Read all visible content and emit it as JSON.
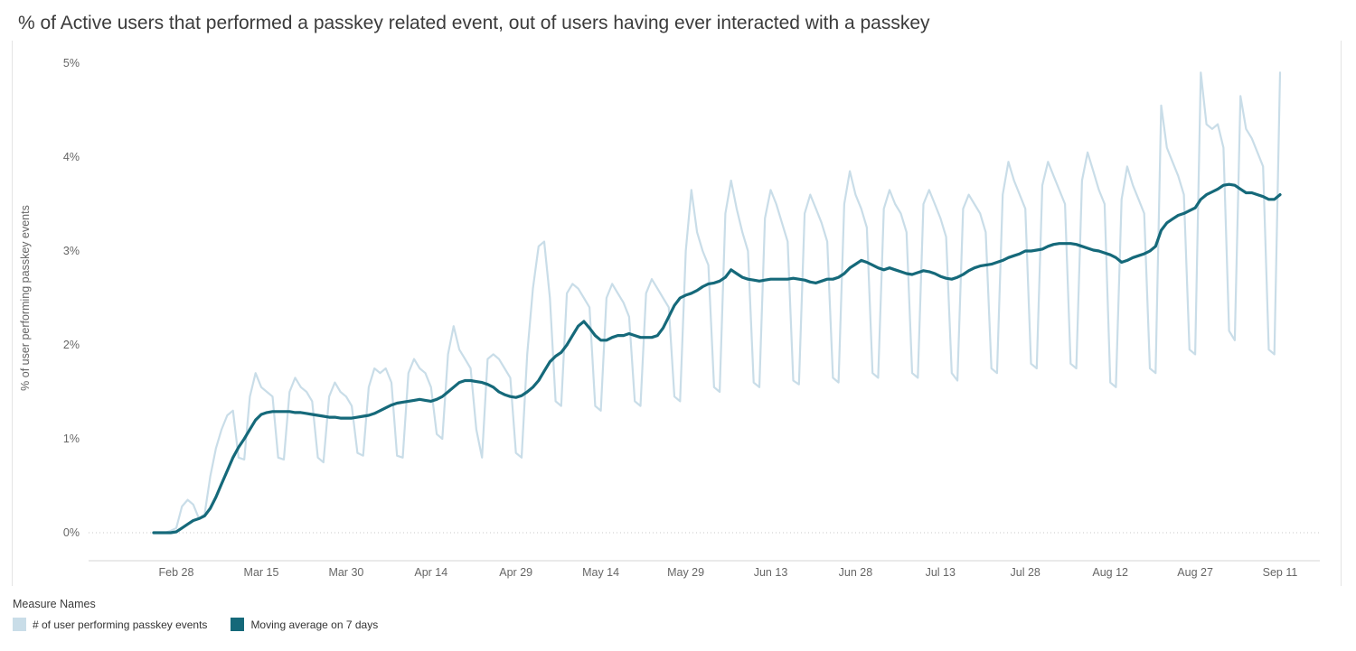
{
  "title": "% of Active users that performed a passkey related event, out of users having ever interacted with a passkey",
  "legend": {
    "title": "Measure Names",
    "items": [
      {
        "label": "# of user performing passkey events",
        "color": "#c9dde8"
      },
      {
        "label": "Moving average on 7 days",
        "color": "#15697a"
      }
    ]
  },
  "colors": {
    "grid_dotted": "#c9c9c9",
    "axis_line": "#d6d6d6",
    "panel_border": "#e4e4e4",
    "axis_text": "#666666",
    "title_text": "#3b3b3b"
  },
  "chart_data": {
    "type": "line",
    "title": "% of Active users that performed a passkey related event, out of users having ever interacted with a passkey",
    "xlabel": "",
    "ylabel": "% of user performing passkey events",
    "ylim": [
      0,
      5
    ],
    "y_tick_values": [
      0,
      1,
      2,
      3,
      4,
      5
    ],
    "y_tick_labels": [
      "0%",
      "1%",
      "2%",
      "3%",
      "4%",
      "5%"
    ],
    "x_frequency": "daily",
    "x_start": "Feb 24",
    "x_end": "Sep 11",
    "x_tick_indices": [
      4,
      19,
      34,
      49,
      64,
      79,
      94,
      109,
      124,
      139,
      154,
      169,
      184,
      199
    ],
    "x_tick_labels": [
      "Feb 28",
      "Mar 15",
      "Mar 30",
      "Apr 14",
      "Apr 29",
      "May 14",
      "May 29",
      "Jun 13",
      "Jun 28",
      "Jul 13",
      "Jul 28",
      "Aug 12",
      "Aug 27",
      "Sep 11"
    ],
    "grid": "no gridlines except dotted line at 0%",
    "legend_position": "bottom-left",
    "series": [
      {
        "name": "# of user performing passkey events",
        "color": "#c9dde8",
        "values": [
          0,
          0,
          0,
          0.02,
          0.05,
          0.28,
          0.35,
          0.3,
          0.15,
          0.2,
          0.6,
          0.9,
          1.1,
          1.25,
          1.3,
          0.8,
          0.78,
          1.45,
          1.7,
          1.55,
          1.5,
          1.45,
          0.8,
          0.78,
          1.5,
          1.65,
          1.55,
          1.5,
          1.4,
          0.8,
          0.75,
          1.45,
          1.6,
          1.5,
          1.45,
          1.35,
          0.85,
          0.82,
          1.55,
          1.75,
          1.7,
          1.75,
          1.6,
          0.82,
          0.8,
          1.7,
          1.85,
          1.75,
          1.7,
          1.55,
          1.05,
          1,
          1.9,
          2.2,
          1.95,
          1.85,
          1.75,
          1.1,
          0.8,
          1.85,
          1.9,
          1.85,
          1.75,
          1.65,
          0.85,
          0.8,
          1.9,
          2.6,
          3.05,
          3.1,
          2.5,
          1.4,
          1.35,
          2.55,
          2.65,
          2.6,
          2.5,
          2.4,
          1.35,
          1.3,
          2.5,
          2.65,
          2.55,
          2.45,
          2.3,
          1.4,
          1.35,
          2.55,
          2.7,
          2.6,
          2.5,
          2.4,
          1.45,
          1.4,
          3,
          3.65,
          3.2,
          3,
          2.85,
          1.55,
          1.5,
          3.4,
          3.75,
          3.45,
          3.2,
          3,
          1.6,
          1.55,
          3.35,
          3.65,
          3.5,
          3.3,
          3.1,
          1.62,
          1.58,
          3.4,
          3.6,
          3.45,
          3.3,
          3.1,
          1.65,
          1.6,
          3.5,
          3.85,
          3.6,
          3.45,
          3.25,
          1.7,
          1.65,
          3.45,
          3.65,
          3.5,
          3.4,
          3.2,
          1.7,
          1.65,
          3.5,
          3.65,
          3.5,
          3.35,
          3.15,
          1.7,
          1.62,
          3.45,
          3.6,
          3.5,
          3.4,
          3.2,
          1.75,
          1.7,
          3.6,
          3.95,
          3.75,
          3.6,
          3.45,
          1.8,
          1.75,
          3.7,
          3.95,
          3.8,
          3.65,
          3.5,
          1.8,
          1.75,
          3.75,
          4.05,
          3.85,
          3.65,
          3.5,
          1.6,
          1.55,
          3.55,
          3.9,
          3.7,
          3.55,
          3.4,
          1.75,
          1.7,
          4.55,
          4.1,
          3.95,
          3.8,
          3.6,
          1.95,
          1.9,
          4.9,
          4.35,
          4.3,
          4.35,
          4.1,
          2.15,
          2.05,
          4.65,
          4.3,
          4.2,
          4.05,
          3.9,
          1.95,
          1.9,
          4.9
        ]
      },
      {
        "name": "Moving average on 7 days",
        "color": "#15697a",
        "values": [
          0,
          0,
          0,
          0,
          0.01,
          0.05,
          0.09,
          0.13,
          0.15,
          0.18,
          0.26,
          0.38,
          0.52,
          0.66,
          0.8,
          0.91,
          1,
          1.1,
          1.2,
          1.26,
          1.28,
          1.29,
          1.29,
          1.29,
          1.29,
          1.28,
          1.28,
          1.27,
          1.26,
          1.25,
          1.24,
          1.23,
          1.23,
          1.22,
          1.22,
          1.22,
          1.23,
          1.24,
          1.25,
          1.27,
          1.3,
          1.33,
          1.36,
          1.38,
          1.39,
          1.4,
          1.41,
          1.42,
          1.41,
          1.4,
          1.42,
          1.45,
          1.5,
          1.55,
          1.6,
          1.62,
          1.62,
          1.61,
          1.6,
          1.58,
          1.55,
          1.5,
          1.47,
          1.45,
          1.44,
          1.46,
          1.5,
          1.55,
          1.62,
          1.72,
          1.82,
          1.88,
          1.92,
          2,
          2.1,
          2.2,
          2.25,
          2.18,
          2.1,
          2.05,
          2.05,
          2.08,
          2.1,
          2.1,
          2.12,
          2.1,
          2.08,
          2.08,
          2.08,
          2.1,
          2.18,
          2.3,
          2.42,
          2.5,
          2.53,
          2.55,
          2.58,
          2.62,
          2.65,
          2.66,
          2.68,
          2.72,
          2.8,
          2.76,
          2.72,
          2.7,
          2.69,
          2.68,
          2.69,
          2.7,
          2.7,
          2.7,
          2.7,
          2.71,
          2.7,
          2.69,
          2.67,
          2.66,
          2.68,
          2.7,
          2.7,
          2.72,
          2.76,
          2.82,
          2.86,
          2.9,
          2.88,
          2.85,
          2.82,
          2.8,
          2.82,
          2.8,
          2.78,
          2.76,
          2.75,
          2.77,
          2.79,
          2.78,
          2.76,
          2.73,
          2.71,
          2.7,
          2.72,
          2.75,
          2.79,
          2.82,
          2.84,
          2.85,
          2.86,
          2.88,
          2.9,
          2.93,
          2.95,
          2.97,
          3,
          3,
          3.01,
          3.02,
          3.05,
          3.07,
          3.08,
          3.08,
          3.08,
          3.07,
          3.05,
          3.03,
          3.01,
          3,
          2.98,
          2.96,
          2.93,
          2.88,
          2.9,
          2.93,
          2.95,
          2.97,
          3,
          3.05,
          3.22,
          3.3,
          3.34,
          3.38,
          3.4,
          3.43,
          3.46,
          3.55,
          3.6,
          3.63,
          3.66,
          3.7,
          3.71,
          3.7,
          3.66,
          3.62,
          3.62,
          3.6,
          3.58,
          3.55,
          3.55,
          3.6
        ]
      }
    ]
  }
}
